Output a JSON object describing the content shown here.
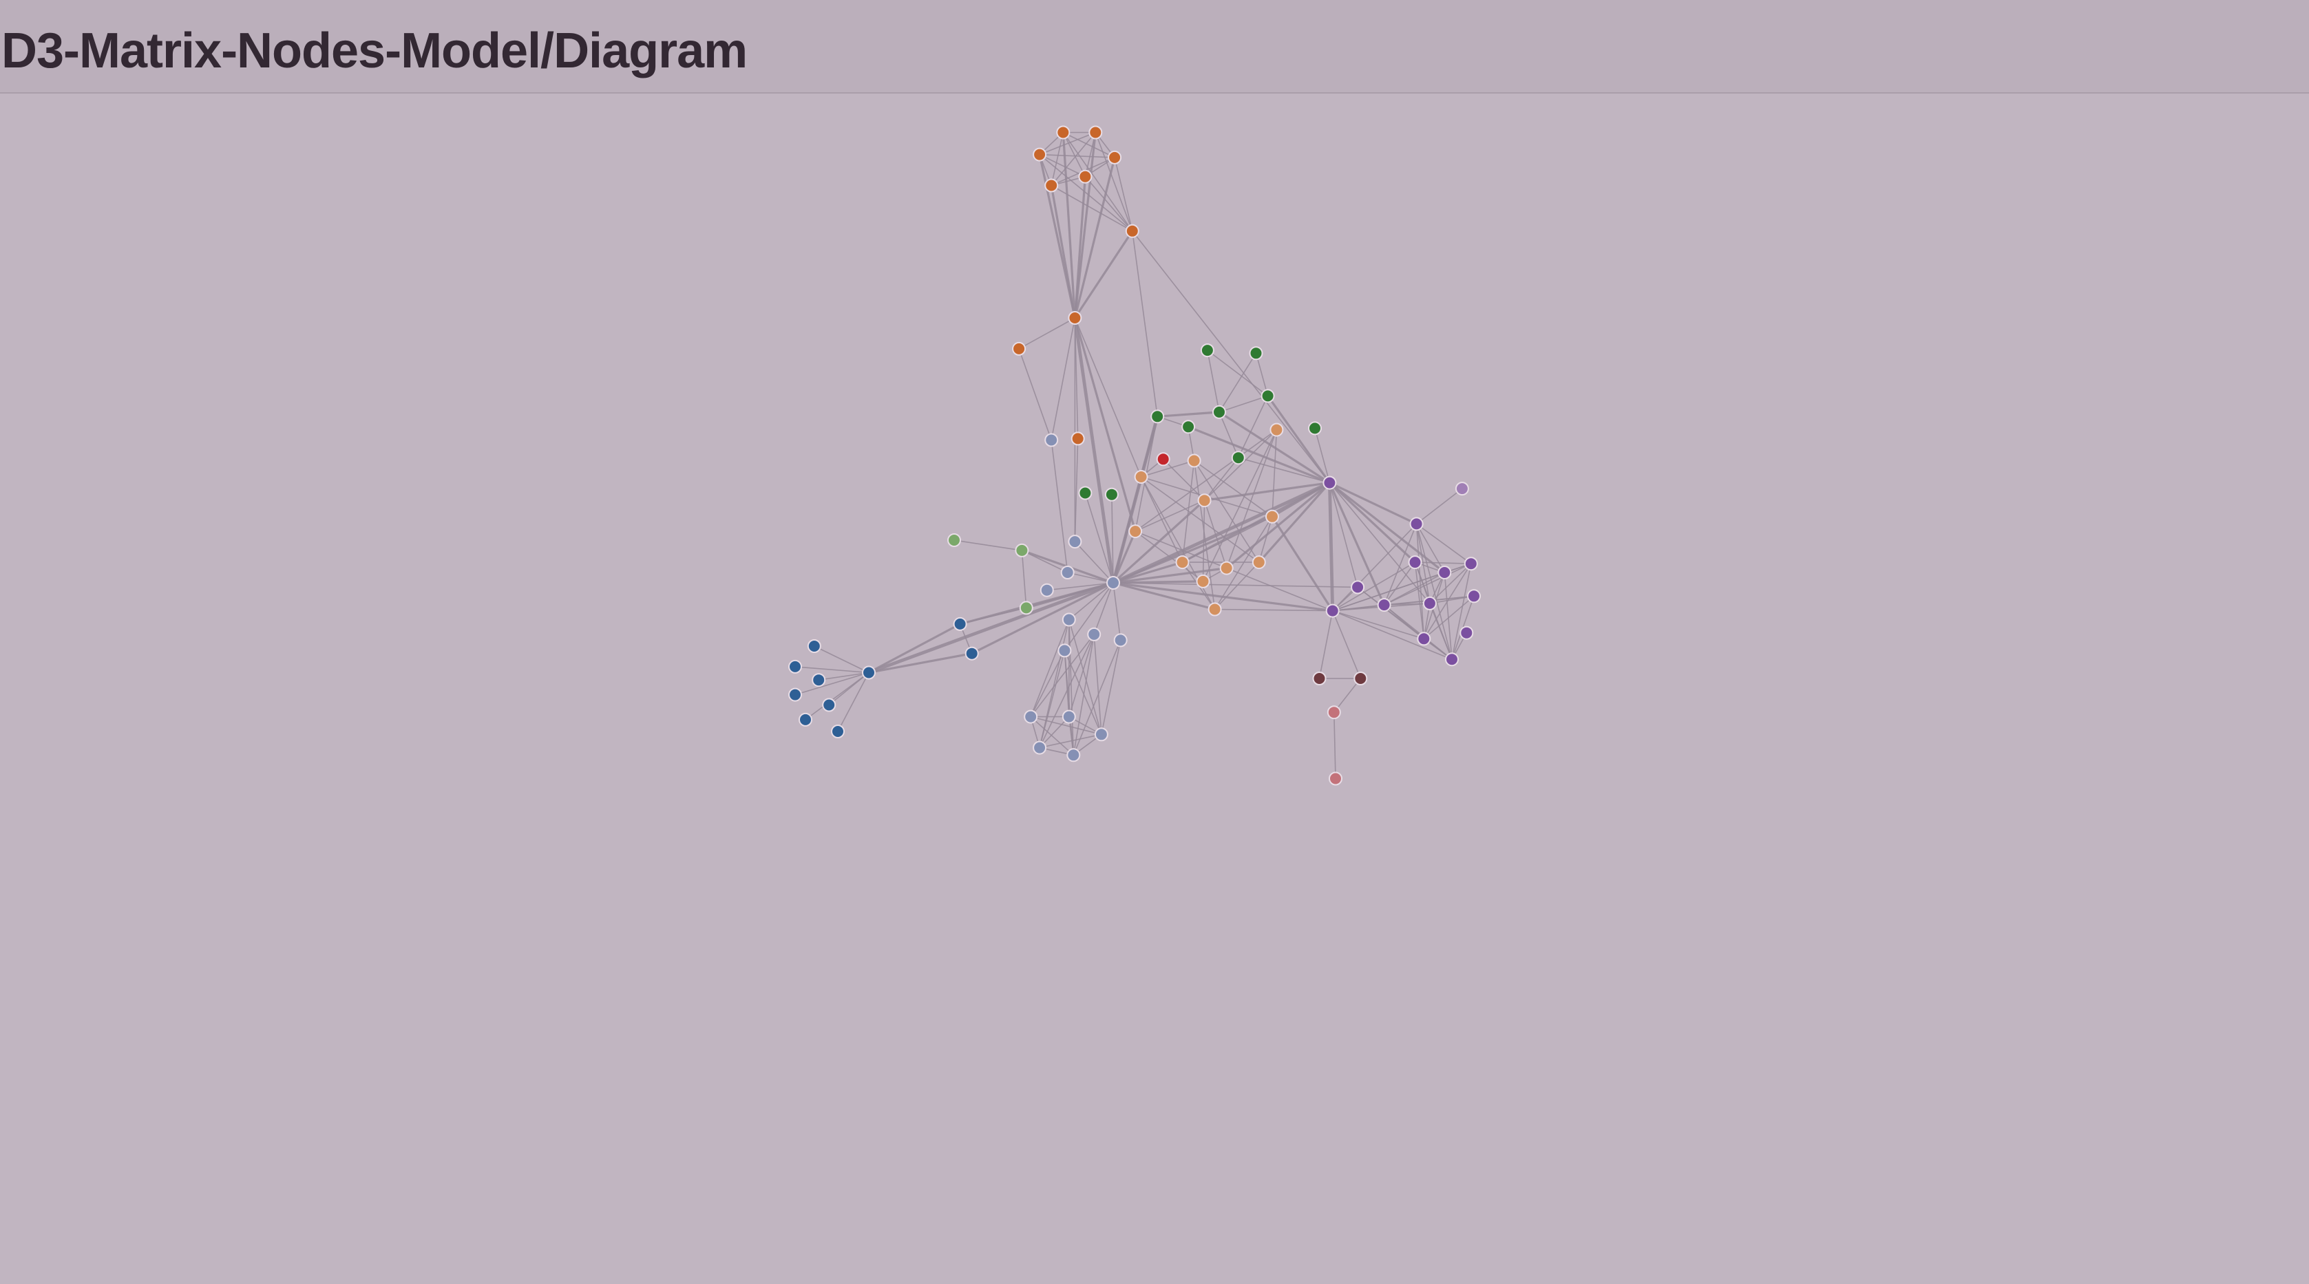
{
  "header": {
    "title": "D3-Matrix-Nodes-Model/Diagram"
  },
  "graph": {
    "group_colors": {
      "orange": "#c8662a",
      "light_orange": "#d4915f",
      "dark_green": "#2f7a32",
      "light_green": "#7ba86a",
      "red": "#c4262c",
      "purple": "#7b4fa0",
      "light_purple": "#a07fb5",
      "dark_blue": "#2e5f95",
      "slate_blue": "#8590b4",
      "maroon": "#6e3a40",
      "pink": "#c3727a"
    }
  }
}
